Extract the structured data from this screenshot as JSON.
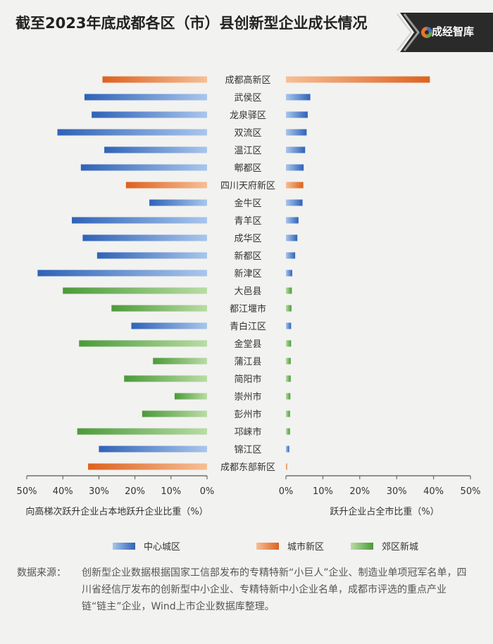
{
  "title": "截至2023年底成都各区（市）县创新型企业成长情况",
  "logo": {
    "text": "成经智库",
    "icon": "swirl-logo-icon"
  },
  "source": {
    "label": "数据来源：",
    "text": "创新型企业数据根据国家工信部发布的专精特新“小巨人”企业、制造业单项冠军名单，四川省经信厅发布的创新型中小企业、专精特新中小企业名单，成都市评选的重点产业链“链主”企业，Wind上市企业数据库整理。"
  },
  "chart_data": {
    "type": "bar",
    "orientation": "horizontal",
    "categories": [
      "成都高新区",
      "武侯区",
      "龙泉驿区",
      "双流区",
      "温江区",
      "郫都区",
      "四川天府新区",
      "金牛区",
      "青羊区",
      "成华区",
      "新都区",
      "新津区",
      "大邑县",
      "都江堰市",
      "青白江区",
      "金堂县",
      "蒲江县",
      "简阳市",
      "崇州市",
      "彭州市",
      "邛崃市",
      "锦江区",
      "成都东部新区"
    ],
    "group": [
      "城市新区",
      "中心城区",
      "中心城区",
      "中心城区",
      "中心城区",
      "中心城区",
      "城市新区",
      "中心城区",
      "中心城区",
      "中心城区",
      "中心城区",
      "中心城区",
      "郊区新城",
      "郊区新城",
      "中心城区",
      "郊区新城",
      "郊区新城",
      "郊区新城",
      "郊区新城",
      "郊区新城",
      "郊区新城",
      "中心城区",
      "城市新区"
    ],
    "legend": [
      {
        "name": "中心城区",
        "color": "#3d72c4"
      },
      {
        "name": "城市新区",
        "color": "#e8742e"
      },
      {
        "name": "郊区新城",
        "color": "#5aa548"
      }
    ],
    "legend_position": "bottom",
    "left_panel": {
      "xlabel": "向高梯次跃升企业占本地跃升企业比重（%）",
      "xlim": [
        0,
        50
      ],
      "direction": "reversed",
      "ticks": [
        "50%",
        "40%",
        "30%",
        "20%",
        "10%",
        "0%"
      ],
      "values": [
        29,
        34,
        32,
        41.5,
        28.5,
        35,
        22.5,
        16,
        37.5,
        34.5,
        30.5,
        47,
        40,
        26.5,
        21,
        35.5,
        15,
        23,
        9,
        18,
        36,
        30,
        33
      ]
    },
    "right_panel": {
      "xlabel": "跃升企业占全市比重（%）",
      "xlim": [
        0,
        50
      ],
      "ticks": [
        "0%",
        "10%",
        "20%",
        "30%",
        "40%",
        "50%"
      ],
      "values": [
        39,
        6.6,
        5.9,
        5.6,
        5.2,
        4.8,
        4.7,
        4.5,
        3.4,
        3.1,
        2.5,
        1.7,
        1.6,
        1.5,
        1.4,
        1.4,
        1.3,
        1.3,
        1.2,
        1.1,
        1.1,
        0.9,
        0.3
      ]
    }
  }
}
